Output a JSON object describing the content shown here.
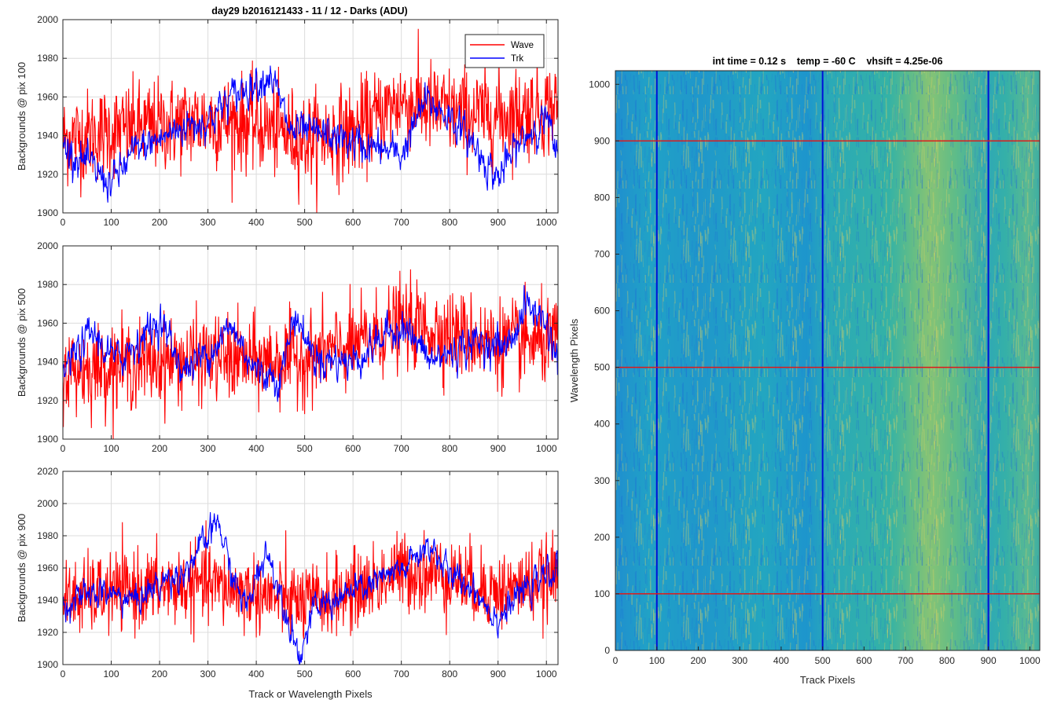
{
  "figure": {
    "title": "day29 b2016121433 - 11 / 12 - Darks (ADU)"
  },
  "colors": {
    "wave": "#ff0000",
    "trk": "#0000ff",
    "grid": "#dcdcdc",
    "axis": "#262626"
  },
  "legend": {
    "items": [
      "Wave",
      "Trk"
    ]
  },
  "chart_data": [
    {
      "type": "line",
      "ylabel": "Backgrounds @ pix 100",
      "xlabel": "",
      "xlim": [
        0,
        1024
      ],
      "ylim": [
        1900,
        2000
      ],
      "yticks": [
        "1900",
        "1920",
        "1940",
        "1960",
        "1980",
        "2000"
      ],
      "xticks": [
        "0",
        "100",
        "200",
        "300",
        "400",
        "500",
        "600",
        "700",
        "800",
        "900",
        "1000"
      ],
      "legend_position": "top-right",
      "series": [
        {
          "name": "Wave",
          "base": [
            [
              0,
              1938
            ],
            [
              100,
              1942
            ],
            [
              200,
              1945
            ],
            [
              300,
              1948
            ],
            [
              400,
              1946
            ],
            [
              500,
              1938
            ],
            [
              600,
              1942
            ],
            [
              700,
              1958
            ],
            [
              800,
              1952
            ],
            [
              900,
              1950
            ],
            [
              1024,
              1955
            ]
          ],
          "noise": 12
        },
        {
          "name": "Trk",
          "base": [
            [
              0,
              1935
            ],
            [
              50,
              1925
            ],
            [
              100,
              1915
            ],
            [
              150,
              1932
            ],
            [
              200,
              1938
            ],
            [
              250,
              1945
            ],
            [
              300,
              1948
            ],
            [
              350,
              1960
            ],
            [
              400,
              1968
            ],
            [
              430,
              1972
            ],
            [
              470,
              1942
            ],
            [
              550,
              1940
            ],
            [
              620,
              1935
            ],
            [
              700,
              1930
            ],
            [
              750,
              1958
            ],
            [
              800,
              1950
            ],
            [
              850,
              1935
            ],
            [
              900,
              1918
            ],
            [
              950,
              1938
            ],
            [
              1000,
              1950
            ],
            [
              1024,
              1925
            ]
          ],
          "noise": 4
        }
      ]
    },
    {
      "type": "line",
      "ylabel": "Backgrounds @ pix 500",
      "xlabel": "",
      "xlim": [
        0,
        1024
      ],
      "ylim": [
        1900,
        2000
      ],
      "yticks": [
        "1900",
        "1920",
        "1940",
        "1960",
        "1980",
        "2000"
      ],
      "xticks": [
        "0",
        "100",
        "200",
        "300",
        "400",
        "500",
        "600",
        "700",
        "800",
        "900",
        "1000"
      ],
      "series": [
        {
          "name": "Wave",
          "base": [
            [
              0,
              1935
            ],
            [
              100,
              1938
            ],
            [
              200,
              1940
            ],
            [
              300,
              1942
            ],
            [
              400,
              1940
            ],
            [
              500,
              1942
            ],
            [
              600,
              1948
            ],
            [
              700,
              1960
            ],
            [
              800,
              1955
            ],
            [
              900,
              1950
            ],
            [
              1024,
              1950
            ]
          ],
          "noise": 11
        },
        {
          "name": "Trk",
          "base": [
            [
              0,
              1935
            ],
            [
              60,
              1955
            ],
            [
              110,
              1940
            ],
            [
              200,
              1962
            ],
            [
              250,
              1935
            ],
            [
              300,
              1945
            ],
            [
              350,
              1958
            ],
            [
              400,
              1935
            ],
            [
              450,
              1932
            ],
            [
              480,
              1965
            ],
            [
              520,
              1942
            ],
            [
              600,
              1940
            ],
            [
              700,
              1960
            ],
            [
              760,
              1940
            ],
            [
              850,
              1950
            ],
            [
              920,
              1948
            ],
            [
              960,
              1970
            ],
            [
              1000,
              1960
            ],
            [
              1024,
              1940
            ]
          ],
          "noise": 4
        }
      ]
    },
    {
      "type": "line",
      "ylabel": "Backgrounds @ pix 900",
      "xlabel": "Track or Wavelength Pixels",
      "xlim": [
        0,
        1024
      ],
      "ylim": [
        1900,
        2020
      ],
      "yticks": [
        "1900",
        "1920",
        "1940",
        "1960",
        "1980",
        "2000",
        "2020"
      ],
      "xticks": [
        "0",
        "100",
        "200",
        "300",
        "400",
        "500",
        "600",
        "700",
        "800",
        "900",
        "1000"
      ],
      "series": [
        {
          "name": "Wave",
          "base": [
            [
              0,
              1940
            ],
            [
              100,
              1945
            ],
            [
              200,
              1948
            ],
            [
              300,
              1950
            ],
            [
              400,
              1944
            ],
            [
              500,
              1938
            ],
            [
              600,
              1945
            ],
            [
              700,
              1958
            ],
            [
              800,
              1955
            ],
            [
              900,
              1945
            ],
            [
              1024,
              1955
            ]
          ],
          "noise": 12
        },
        {
          "name": "Trk",
          "base": [
            [
              0,
              1938
            ],
            [
              80,
              1945
            ],
            [
              150,
              1940
            ],
            [
              200,
              1950
            ],
            [
              250,
              1958
            ],
            [
              300,
              1978
            ],
            [
              320,
              1990
            ],
            [
              350,
              1955
            ],
            [
              380,
              1935
            ],
            [
              420,
              1972
            ],
            [
              450,
              1945
            ],
            [
              490,
              1905
            ],
            [
              520,
              1935
            ],
            [
              600,
              1945
            ],
            [
              700,
              1958
            ],
            [
              760,
              1975
            ],
            [
              800,
              1955
            ],
            [
              850,
              1948
            ],
            [
              900,
              1928
            ],
            [
              950,
              1945
            ],
            [
              1024,
              1960
            ]
          ],
          "noise": 4
        }
      ]
    },
    {
      "type": "heatmap",
      "title": "int time = 0.12 s    temp = -60 C    vhsift = 4.25e-06",
      "xlabel": "Track Pixels",
      "ylabel": "Wavelength Pixels",
      "xlim": [
        0,
        1024
      ],
      "ylim": [
        0,
        1024
      ],
      "xticks": [
        "0",
        "100",
        "200",
        "300",
        "400",
        "500",
        "600",
        "700",
        "800",
        "900",
        "1000"
      ],
      "yticks": [
        "0",
        "100",
        "200",
        "300",
        "400",
        "500",
        "600",
        "700",
        "800",
        "900",
        "1000"
      ],
      "colormap": [
        "#1f6fd0",
        "#1e9ec8",
        "#27b1a4",
        "#7cc26e",
        "#c9c041"
      ],
      "bright_band": [
        660,
        900
      ],
      "marker_columns": [
        100,
        500,
        900
      ],
      "marker_rows": [
        100,
        500,
        900
      ]
    }
  ]
}
